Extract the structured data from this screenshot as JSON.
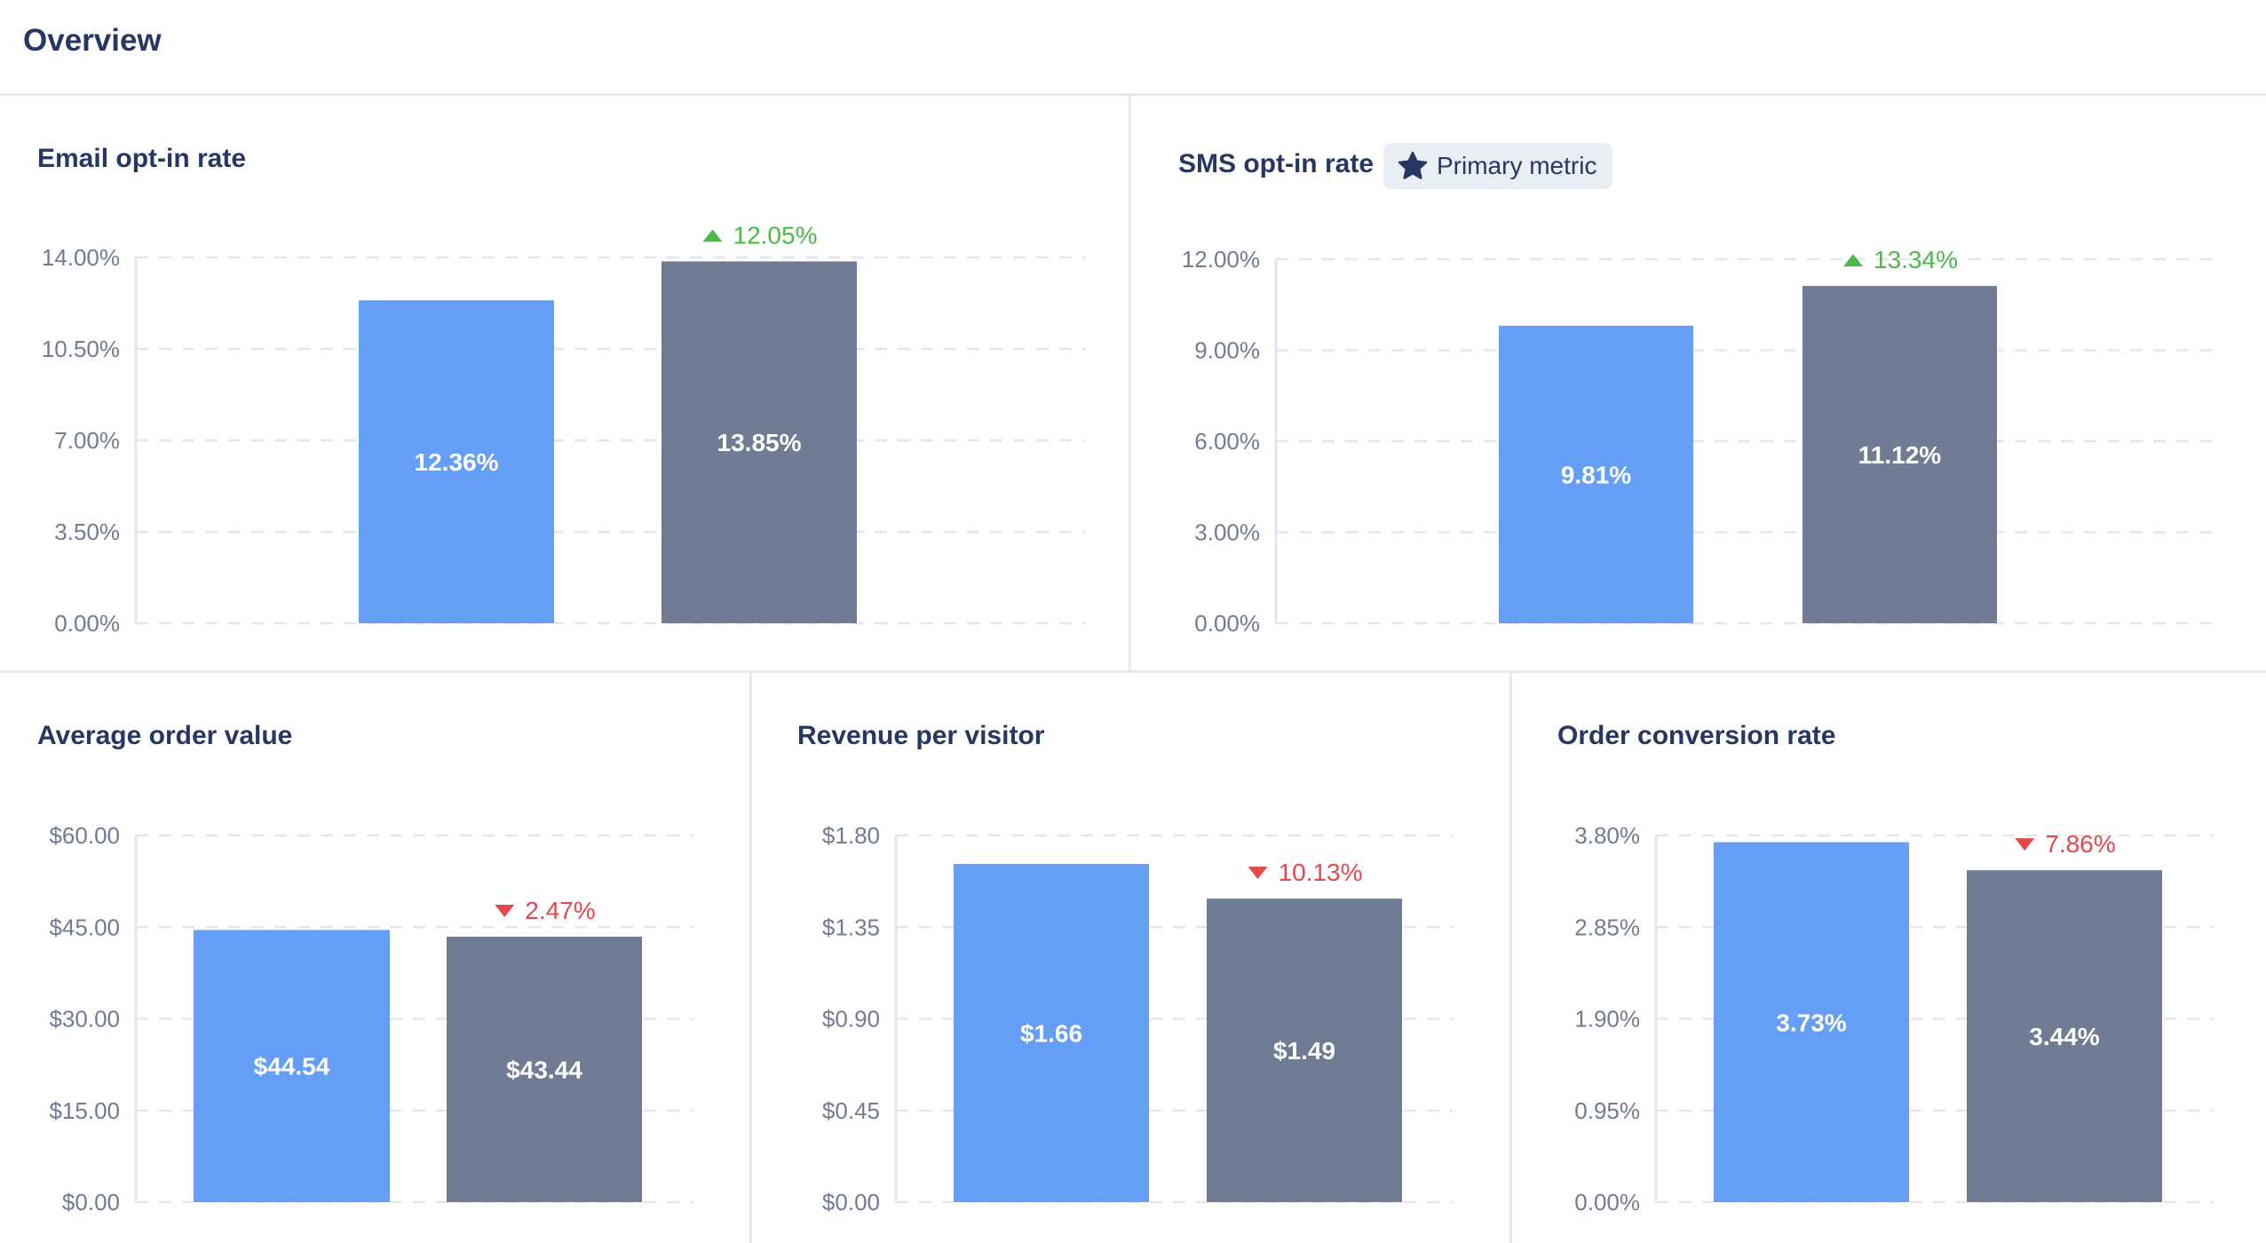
{
  "header": {
    "title": "Overview"
  },
  "colors": {
    "control": "#659ef7",
    "variant": "#6f7c93",
    "up": "#4cb94a",
    "down": "#e5484d",
    "grid": "#e3e6ee",
    "tick": "#6f7c93"
  },
  "badge": {
    "label": "Primary metric",
    "icon": "star-icon"
  },
  "chart_data": [
    {
      "type": "bar",
      "title": "Email opt-in rate",
      "ylim": [
        0,
        14
      ],
      "yticks": [
        "0.00%",
        "3.50%",
        "7.00%",
        "10.50%",
        "14.00%"
      ],
      "values": [
        12.36,
        13.85
      ],
      "labels": [
        "12.36%",
        "13.85%"
      ],
      "change": {
        "direction": "up",
        "label": "12.05%"
      }
    },
    {
      "type": "bar",
      "title": "SMS opt-in rate",
      "ylim": [
        0,
        12
      ],
      "yticks": [
        "0.00%",
        "3.00%",
        "6.00%",
        "9.00%",
        "12.00%"
      ],
      "values": [
        9.81,
        11.12
      ],
      "labels": [
        "9.81%",
        "11.12%"
      ],
      "change": {
        "direction": "up",
        "label": "13.34%"
      }
    },
    {
      "type": "bar",
      "title": "Average order value",
      "ylim": [
        0,
        60
      ],
      "yticks": [
        "$0.00",
        "$15.00",
        "$30.00",
        "$45.00",
        "$60.00"
      ],
      "values": [
        44.54,
        43.44
      ],
      "labels": [
        "$44.54",
        "$43.44"
      ],
      "change": {
        "direction": "down",
        "label": "2.47%"
      }
    },
    {
      "type": "bar",
      "title": "Revenue per visitor",
      "ylim": [
        0,
        1.8
      ],
      "yticks": [
        "$0.00",
        "$0.45",
        "$0.90",
        "$1.35",
        "$1.80"
      ],
      "values": [
        1.66,
        1.49
      ],
      "labels": [
        "$1.66",
        "$1.49"
      ],
      "change": {
        "direction": "down",
        "label": "10.13%"
      }
    },
    {
      "type": "bar",
      "title": "Order conversion rate",
      "ylim": [
        0,
        3.8
      ],
      "yticks": [
        "0.00%",
        "0.95%",
        "1.90%",
        "2.85%",
        "3.80%"
      ],
      "values": [
        3.73,
        3.44
      ],
      "labels": [
        "3.73%",
        "3.44%"
      ],
      "change": {
        "direction": "down",
        "label": "7.86%"
      }
    }
  ]
}
